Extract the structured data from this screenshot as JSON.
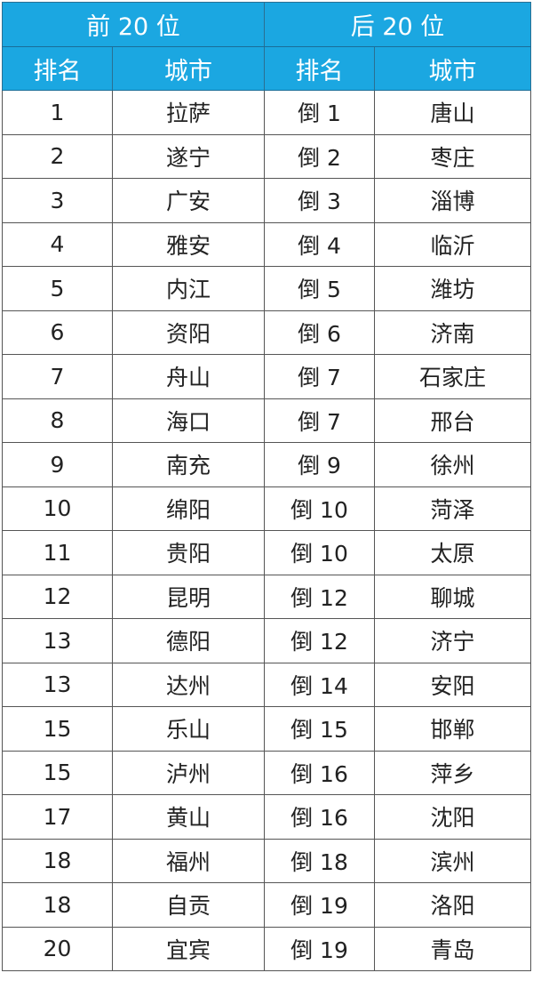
{
  "header": {
    "top_group": "前 20 位",
    "bottom_group": "后 20 位",
    "rank_label": "排名",
    "city_label": "城市"
  },
  "colors": {
    "header_bg": "#1ba7e1",
    "header_text": "#ffffff"
  },
  "rows": [
    {
      "top_rank": "1",
      "top_city": "拉萨",
      "bottom_rank": "倒 1",
      "bottom_city": "唐山"
    },
    {
      "top_rank": "2",
      "top_city": "遂宁",
      "bottom_rank": "倒 2",
      "bottom_city": "枣庄"
    },
    {
      "top_rank": "3",
      "top_city": "广安",
      "bottom_rank": "倒 3",
      "bottom_city": "淄博"
    },
    {
      "top_rank": "4",
      "top_city": "雅安",
      "bottom_rank": "倒 4",
      "bottom_city": "临沂"
    },
    {
      "top_rank": "5",
      "top_city": "内江",
      "bottom_rank": "倒 5",
      "bottom_city": "潍坊"
    },
    {
      "top_rank": "6",
      "top_city": "资阳",
      "bottom_rank": "倒 6",
      "bottom_city": "济南"
    },
    {
      "top_rank": "7",
      "top_city": "舟山",
      "bottom_rank": "倒 7",
      "bottom_city": "石家庄"
    },
    {
      "top_rank": "8",
      "top_city": "海口",
      "bottom_rank": "倒 7",
      "bottom_city": "邢台"
    },
    {
      "top_rank": "9",
      "top_city": "南充",
      "bottom_rank": "倒 9",
      "bottom_city": "徐州"
    },
    {
      "top_rank": "10",
      "top_city": "绵阳",
      "bottom_rank": "倒 10",
      "bottom_city": "菏泽"
    },
    {
      "top_rank": "11",
      "top_city": "贵阳",
      "bottom_rank": "倒 10",
      "bottom_city": "太原"
    },
    {
      "top_rank": "12",
      "top_city": "昆明",
      "bottom_rank": "倒 12",
      "bottom_city": "聊城"
    },
    {
      "top_rank": "13",
      "top_city": "德阳",
      "bottom_rank": "倒 12",
      "bottom_city": "济宁"
    },
    {
      "top_rank": "13",
      "top_city": "达州",
      "bottom_rank": "倒 14",
      "bottom_city": "安阳"
    },
    {
      "top_rank": "15",
      "top_city": "乐山",
      "bottom_rank": "倒 15",
      "bottom_city": "邯郸"
    },
    {
      "top_rank": "15",
      "top_city": "泸州",
      "bottom_rank": "倒 16",
      "bottom_city": "萍乡"
    },
    {
      "top_rank": "17",
      "top_city": "黄山",
      "bottom_rank": "倒 16",
      "bottom_city": "沈阳"
    },
    {
      "top_rank": "18",
      "top_city": "福州",
      "bottom_rank": "倒 18",
      "bottom_city": "滨州"
    },
    {
      "top_rank": "18",
      "top_city": "自贡",
      "bottom_rank": "倒 19",
      "bottom_city": "洛阳"
    },
    {
      "top_rank": "20",
      "top_city": "宜宾",
      "bottom_rank": "倒 19",
      "bottom_city": "青岛"
    }
  ]
}
